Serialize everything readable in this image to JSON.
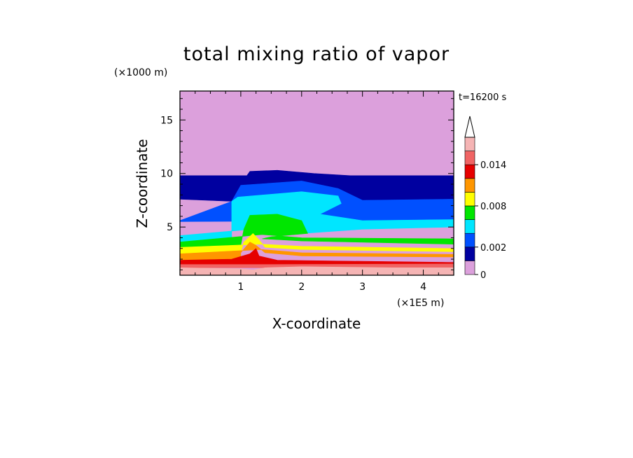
{
  "chart_data": {
    "type": "heatmap",
    "title": "total mixing ratio of vapor",
    "xlabel": "X-coordinate",
    "ylabel": "Z-coordinate",
    "x_unit": "(×1E5 m)",
    "y_unit": "(×1000 m)",
    "time_label": "t=16200 s",
    "xlim": [
      0,
      4.5
    ],
    "ylim": [
      0.5,
      17.7
    ],
    "x_ticks": [
      1,
      2,
      3,
      4
    ],
    "y_ticks": [
      5,
      10,
      15
    ],
    "x_ticklabels": [
      "1",
      "2",
      "3",
      "4"
    ],
    "y_ticklabels": [
      "5",
      "10",
      "15"
    ],
    "colorbar": {
      "levels": [
        0,
        0.001,
        0.002,
        0.004,
        0.006,
        0.008,
        0.01,
        0.012,
        0.014,
        0.016
      ],
      "colors": [
        "#dca0dc",
        "#0000a0",
        "#0050ff",
        "#00e6ff",
        "#00e600",
        "#ffff00",
        "#ff9600",
        "#e60000",
        "#f06464",
        "#f5b4b4"
      ],
      "ticks": [
        0,
        0.002,
        0.008,
        0.014
      ],
      "ticklabels": [
        "0",
        "0.002",
        "0.008",
        "0.014"
      ],
      "extend": "max"
    },
    "contour_bands": [
      {
        "color": "#f5b4b4",
        "profile": [
          [
            0,
            0.5
          ],
          [
            4.5,
            0.5
          ],
          [
            4.5,
            1.2
          ],
          [
            3.5,
            1.2
          ],
          [
            2.0,
            1.3
          ],
          [
            1.4,
            1.2
          ],
          [
            1.2,
            1.0
          ],
          [
            1.0,
            1.1
          ],
          [
            0,
            1.2
          ]
        ]
      },
      {
        "color": "#f06464",
        "profile": [
          [
            0,
            1.2
          ],
          [
            4.5,
            1.2
          ],
          [
            4.5,
            1.55
          ],
          [
            1.5,
            1.5
          ],
          [
            0,
            1.5
          ]
        ]
      },
      {
        "color": "#e60000",
        "profile": [
          [
            0,
            1.5
          ],
          [
            4.5,
            1.55
          ],
          [
            4.5,
            1.7
          ],
          [
            1.6,
            1.9
          ],
          [
            1.3,
            2.3
          ],
          [
            1.25,
            3.0
          ],
          [
            1.15,
            2.5
          ],
          [
            0.85,
            2.0
          ],
          [
            0,
            1.9
          ]
        ]
      },
      {
        "color": "#ff9600",
        "profile": [
          [
            0,
            1.9
          ],
          [
            1.0,
            2.0
          ],
          [
            1.0,
            2.6
          ],
          [
            1.15,
            3.6
          ],
          [
            1.25,
            3.3
          ],
          [
            1.4,
            2.6
          ],
          [
            2.0,
            2.3
          ],
          [
            4.5,
            2.2
          ],
          [
            4.5,
            2.45
          ],
          [
            2.0,
            2.6
          ],
          [
            1.35,
            2.9
          ],
          [
            0,
            2.5
          ]
        ]
      },
      {
        "color": "#ffff00",
        "profile": [
          [
            0,
            2.5
          ],
          [
            1.0,
            2.6
          ],
          [
            1.05,
            3.6
          ],
          [
            1.2,
            4.4
          ],
          [
            1.3,
            3.8
          ],
          [
            1.4,
            3.1
          ],
          [
            2.0,
            2.9
          ],
          [
            4.5,
            2.7
          ],
          [
            4.5,
            3.0
          ],
          [
            2.0,
            3.2
          ],
          [
            1.35,
            3.4
          ],
          [
            0,
            3.1
          ]
        ]
      },
      {
        "color": "#00e600",
        "profile": [
          [
            0,
            3.1
          ],
          [
            1.0,
            3.3
          ],
          [
            1.05,
            4.8
          ],
          [
            1.15,
            6.1
          ],
          [
            1.6,
            6.2
          ],
          [
            2.0,
            5.6
          ],
          [
            2.1,
            4.4
          ],
          [
            1.5,
            4.1
          ],
          [
            1.35,
            3.9
          ],
          [
            2.0,
            3.7
          ],
          [
            4.5,
            3.4
          ],
          [
            4.5,
            3.9
          ],
          [
            2.0,
            4.0
          ],
          [
            1.35,
            4.3
          ],
          [
            0,
            3.6
          ]
        ]
      },
      {
        "color": "#00e6ff",
        "profile": [
          [
            0,
            3.6
          ],
          [
            0.85,
            3.8
          ],
          [
            0.85,
            7.4
          ],
          [
            0.95,
            7.8
          ],
          [
            2.0,
            8.3
          ],
          [
            2.6,
            7.9
          ],
          [
            2.65,
            7.2
          ],
          [
            2.3,
            6.2
          ],
          [
            3.0,
            5.6
          ],
          [
            4.5,
            5.7
          ],
          [
            4.5,
            5.0
          ],
          [
            3.0,
            4.8
          ],
          [
            2.0,
            4.4
          ],
          [
            1.4,
            4.9
          ],
          [
            0,
            4.2
          ]
        ]
      },
      {
        "color": "#0050ff",
        "profile": [
          [
            0,
            5.6
          ],
          [
            0.85,
            7.4
          ],
          [
            1.0,
            8.9
          ],
          [
            2.0,
            9.3
          ],
          [
            2.6,
            8.6
          ],
          [
            3.0,
            7.5
          ],
          [
            4.5,
            7.6
          ],
          [
            4.5,
            5.7
          ],
          [
            3.0,
            5.6
          ],
          [
            0,
            5.5
          ]
        ]
      },
      {
        "color": "#0000a0",
        "profile": [
          [
            0,
            7.6
          ],
          [
            0,
            9.8
          ],
          [
            1.1,
            9.8
          ],
          [
            1.15,
            10.2
          ],
          [
            1.6,
            10.3
          ],
          [
            2.2,
            10.0
          ],
          [
            2.8,
            9.8
          ],
          [
            4.5,
            9.8
          ],
          [
            4.5,
            7.6
          ],
          [
            3.0,
            7.5
          ],
          [
            2.6,
            8.6
          ],
          [
            2.0,
            9.3
          ],
          [
            1.0,
            8.9
          ],
          [
            0.85,
            7.4
          ]
        ]
      }
    ]
  }
}
